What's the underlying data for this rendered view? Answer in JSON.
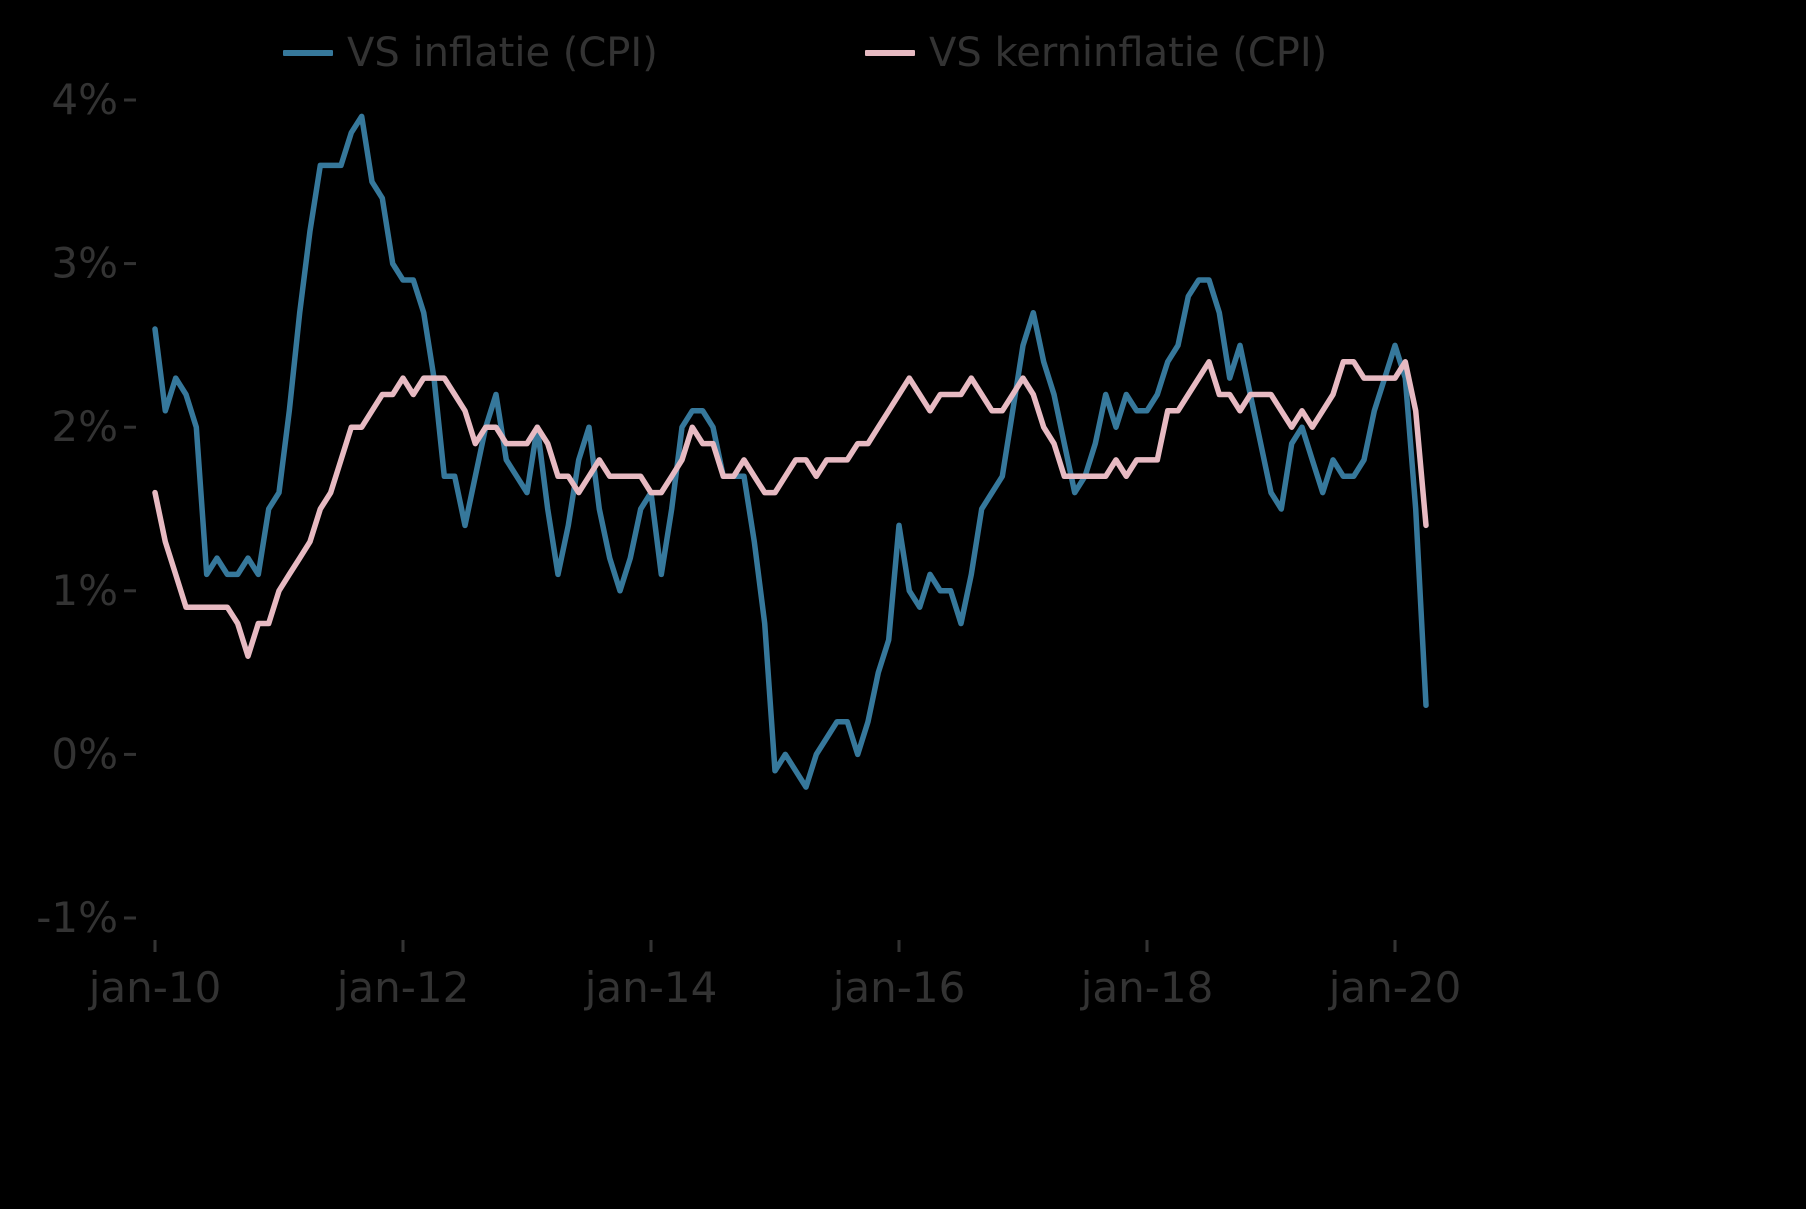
{
  "colors": {
    "background": "#000000",
    "text": "#333333",
    "inflation_line": "#36789b",
    "core_inflation_line": "#e7bac2"
  },
  "legend": {
    "items": [
      {
        "label": "VS inflatie (CPI)"
      },
      {
        "label": "VS kerninflatie (CPI)"
      }
    ]
  },
  "chart_data": {
    "type": "line",
    "title": "",
    "xlabel": "",
    "ylabel": "",
    "ylim": [
      -1,
      4
    ],
    "grid": false,
    "legend_position": "top",
    "x_unit": "month",
    "x_start": "jan-10",
    "x_end": "apr-20",
    "x_ticks": [
      {
        "label": "jan-10",
        "month_index": 0
      },
      {
        "label": "jan-12",
        "month_index": 24
      },
      {
        "label": "jan-14",
        "month_index": 48
      },
      {
        "label": "jan-16",
        "month_index": 72
      },
      {
        "label": "jan-18",
        "month_index": 96
      },
      {
        "label": "jan-20",
        "month_index": 120
      }
    ],
    "y_ticks": [
      {
        "label": "-1%",
        "value": -1
      },
      {
        "label": "0%",
        "value": 0
      },
      {
        "label": "1%",
        "value": 1
      },
      {
        "label": "2%",
        "value": 2
      },
      {
        "label": "3%",
        "value": 3
      },
      {
        "label": "4%",
        "value": 4
      }
    ],
    "series": [
      {
        "name": "VS inflatie (CPI)",
        "color": "#36789b",
        "values": [
          2.6,
          2.1,
          2.3,
          2.2,
          2.0,
          1.1,
          1.2,
          1.1,
          1.1,
          1.2,
          1.1,
          1.5,
          1.6,
          2.1,
          2.7,
          3.2,
          3.6,
          3.6,
          3.6,
          3.8,
          3.9,
          3.5,
          3.4,
          3.0,
          2.9,
          2.9,
          2.7,
          2.3,
          1.7,
          1.7,
          1.4,
          1.7,
          2.0,
          2.2,
          1.8,
          1.7,
          1.6,
          2.0,
          1.5,
          1.1,
          1.4,
          1.8,
          2.0,
          1.5,
          1.2,
          1.0,
          1.2,
          1.5,
          1.6,
          1.1,
          1.5,
          2.0,
          2.1,
          2.1,
          2.0,
          1.7,
          1.7,
          1.7,
          1.3,
          0.8,
          -0.1,
          0.0,
          -0.1,
          -0.2,
          0.0,
          0.1,
          0.2,
          0.2,
          0.0,
          0.2,
          0.5,
          0.7,
          1.4,
          1.0,
          0.9,
          1.1,
          1.0,
          1.0,
          0.8,
          1.1,
          1.5,
          1.6,
          1.7,
          2.1,
          2.5,
          2.7,
          2.4,
          2.2,
          1.9,
          1.6,
          1.7,
          1.9,
          2.2,
          2.0,
          2.2,
          2.1,
          2.1,
          2.2,
          2.4,
          2.5,
          2.8,
          2.9,
          2.9,
          2.7,
          2.3,
          2.5,
          2.2,
          1.9,
          1.6,
          1.5,
          1.9,
          2.0,
          1.8,
          1.6,
          1.8,
          1.7,
          1.7,
          1.8,
          2.1,
          2.3,
          2.5,
          2.3,
          1.5,
          0.3
        ]
      },
      {
        "name": "VS kerninflatie (CPI)",
        "color": "#e7bac2",
        "values": [
          1.6,
          1.3,
          1.1,
          0.9,
          0.9,
          0.9,
          0.9,
          0.9,
          0.8,
          0.6,
          0.8,
          0.8,
          1.0,
          1.1,
          1.2,
          1.3,
          1.5,
          1.6,
          1.8,
          2.0,
          2.0,
          2.1,
          2.2,
          2.2,
          2.3,
          2.2,
          2.3,
          2.3,
          2.3,
          2.2,
          2.1,
          1.9,
          2.0,
          2.0,
          1.9,
          1.9,
          1.9,
          2.0,
          1.9,
          1.7,
          1.7,
          1.6,
          1.7,
          1.8,
          1.7,
          1.7,
          1.7,
          1.7,
          1.6,
          1.6,
          1.7,
          1.8,
          2.0,
          1.9,
          1.9,
          1.7,
          1.7,
          1.8,
          1.7,
          1.6,
          1.6,
          1.7,
          1.8,
          1.8,
          1.7,
          1.8,
          1.8,
          1.8,
          1.9,
          1.9,
          2.0,
          2.1,
          2.2,
          2.3,
          2.2,
          2.1,
          2.2,
          2.2,
          2.2,
          2.3,
          2.2,
          2.1,
          2.1,
          2.2,
          2.3,
          2.2,
          2.0,
          1.9,
          1.7,
          1.7,
          1.7,
          1.7,
          1.7,
          1.8,
          1.7,
          1.8,
          1.8,
          1.8,
          2.1,
          2.1,
          2.2,
          2.3,
          2.4,
          2.2,
          2.2,
          2.1,
          2.2,
          2.2,
          2.2,
          2.1,
          2.0,
          2.1,
          2.0,
          2.1,
          2.2,
          2.4,
          2.4,
          2.3,
          2.3,
          2.3,
          2.3,
          2.4,
          2.1,
          1.4
        ]
      }
    ]
  }
}
